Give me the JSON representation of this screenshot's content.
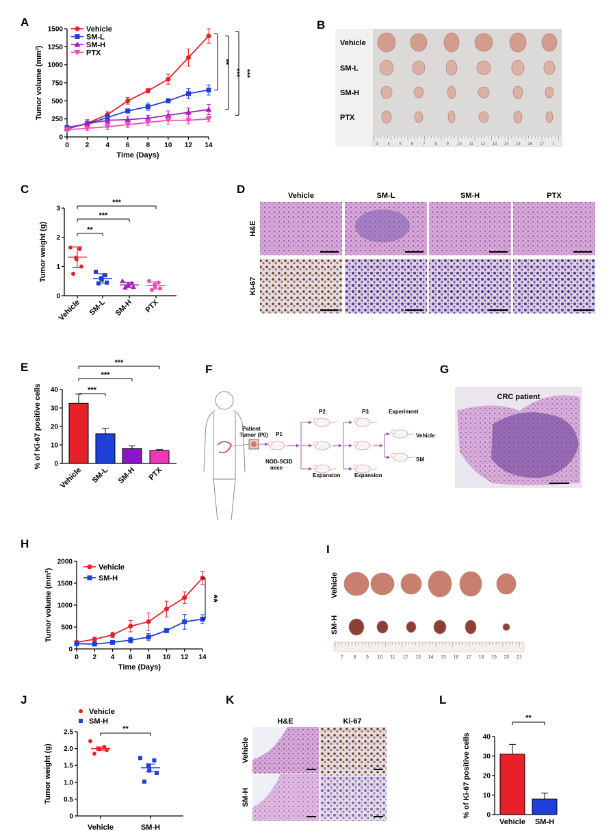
{
  "panel_letters": [
    "A",
    "B",
    "C",
    "D",
    "E",
    "F",
    "G",
    "H",
    "I",
    "J",
    "K",
    "L"
  ],
  "colors": {
    "vehicle": "#e8202a",
    "sml": "#1e3fd8",
    "smh": "#a51fb8",
    "ptx": "#e84fbe",
    "bar_smh": "#8a15c9",
    "bar_ptx": "#ef3ab8"
  },
  "panel_b": {
    "rows": [
      "Vehicle",
      "SM-L",
      "SM-H",
      "PTX"
    ],
    "ruler": [
      "3",
      "4",
      "5",
      "6",
      "7",
      "8",
      "9",
      "10",
      "11",
      "12",
      "13",
      "14",
      "15",
      "16",
      "17",
      "1"
    ]
  },
  "panel_d": {
    "columns": [
      "Vehicle",
      "SM-L",
      "SM-H",
      "PTX"
    ],
    "rows": [
      "H&E",
      "Ki-67"
    ]
  },
  "panel_f": {
    "patient": "Patient",
    "tumor": "Tumor (P0)",
    "p1": "P1",
    "mice_line1": "NOD-SCID",
    "mice_line2": "mice",
    "p2": "P2",
    "p3": "P3",
    "experiment": "Experiment",
    "expansion1": "Expansion",
    "expansion2": "Expansion",
    "vehicle": "Vehicle",
    "sm": "SM"
  },
  "panel_g": {
    "title": "CRC patient"
  },
  "panel_i": {
    "rows": [
      "Vehicle",
      "SM-H"
    ],
    "ruler": [
      "7",
      "8",
      "9",
      "10",
      "11",
      "12",
      "13",
      "14",
      "15",
      "16",
      "17",
      "18",
      "19",
      "20",
      "21"
    ]
  },
  "panel_k": {
    "columns": [
      "H&E",
      "Ki-67"
    ],
    "rows": [
      "Vehicle",
      "SM-H"
    ]
  },
  "chart_data": [
    {
      "id": "A",
      "type": "line",
      "xlabel": "Time (Days)",
      "ylabel": "Tumor volume (mm³)",
      "x": [
        0,
        2,
        4,
        6,
        8,
        10,
        12,
        14
      ],
      "xlim": [
        0,
        14
      ],
      "ylim": [
        0,
        1500
      ],
      "xticks": [
        "0",
        "2",
        "4",
        "6",
        "8",
        "10",
        "12",
        "14"
      ],
      "yticks": [
        "0",
        "250",
        "500",
        "750",
        "1000",
        "1250",
        "1500"
      ],
      "series": [
        {
          "name": "Vehicle",
          "color": "#e8202a",
          "marker": "circle",
          "values": [
            110,
            190,
            310,
            500,
            640,
            800,
            1100,
            1400
          ],
          "errors": [
            20,
            50,
            40,
            45,
            30,
            70,
            120,
            100
          ]
        },
        {
          "name": "SM-L",
          "color": "#1e3fd8",
          "marker": "square",
          "values": [
            130,
            180,
            270,
            360,
            420,
            500,
            600,
            650
          ],
          "errors": [
            20,
            40,
            40,
            30,
            50,
            30,
            70,
            70
          ]
        },
        {
          "name": "SM-H",
          "color": "#a51fb8",
          "marker": "triangle-up",
          "values": [
            120,
            180,
            230,
            240,
            260,
            300,
            340,
            380
          ],
          "errors": [
            20,
            40,
            40,
            50,
            40,
            60,
            60,
            70
          ]
        },
        {
          "name": "PTX",
          "color": "#e84fbe",
          "marker": "triangle-down",
          "values": [
            100,
            120,
            140,
            170,
            200,
            230,
            230,
            250
          ],
          "errors": [
            20,
            30,
            40,
            40,
            40,
            60,
            50,
            40
          ]
        }
      ],
      "significance": [
        "**",
        "***",
        "***"
      ]
    },
    {
      "id": "C",
      "type": "scatter",
      "ylabel": "Tumor weight (g)",
      "ylim": [
        0,
        3
      ],
      "yticks": [
        "0",
        "1",
        "2",
        "3"
      ],
      "categories": [
        "Vehicle",
        "SM-L",
        "SM-H",
        "PTX"
      ],
      "points": [
        [
          1.65,
          1.6,
          1.3,
          1.25,
          1.0,
          0.75
        ],
        [
          0.82,
          0.7,
          0.6,
          0.55,
          0.45,
          0.42
        ],
        [
          0.5,
          0.42,
          0.38,
          0.34,
          0.3,
          0.28
        ],
        [
          0.5,
          0.45,
          0.38,
          0.3,
          0.25,
          0.2
        ]
      ],
      "means": [
        1.32,
        0.59,
        0.37,
        0.35
      ],
      "sd": [
        0.35,
        0.16,
        0.09,
        0.12
      ],
      "colors": [
        "#e8202a",
        "#1e3fd8",
        "#a51fb8",
        "#e84fbe"
      ],
      "significance": [
        "**",
        "***",
        "***"
      ]
    },
    {
      "id": "E",
      "type": "bar",
      "ylabel": "% of Ki-67 positive cells",
      "ylim": [
        0,
        40
      ],
      "yticks": [
        "0",
        "10",
        "20",
        "30",
        "40"
      ],
      "categories": [
        "Vehicle",
        "SM-L",
        "SM-H",
        "PTX"
      ],
      "values": [
        32.5,
        16,
        8,
        7
      ],
      "errors": [
        5,
        3,
        1.5,
        0.5
      ],
      "colors": [
        "#e8202a",
        "#1e3fd8",
        "#8a15c9",
        "#ef3ab8"
      ],
      "significance": [
        "***",
        "***",
        "***"
      ]
    },
    {
      "id": "H",
      "type": "line",
      "xlabel": "Time (Days)",
      "ylabel": "Tumor volume (mm³)",
      "x": [
        0,
        2,
        4,
        6,
        8,
        10,
        12,
        14
      ],
      "xlim": [
        0,
        14
      ],
      "ylim": [
        0,
        2000
      ],
      "xticks": [
        "0",
        "2",
        "4",
        "6",
        "8",
        "10",
        "12",
        "14"
      ],
      "yticks": [
        "0",
        "500",
        "1000",
        "1500",
        "2000"
      ],
      "series": [
        {
          "name": "Vehicle",
          "color": "#e8202a",
          "marker": "circle",
          "values": [
            150,
            220,
            320,
            520,
            620,
            910,
            1170,
            1620
          ],
          "errors": [
            40,
            50,
            60,
            130,
            200,
            180,
            130,
            150
          ]
        },
        {
          "name": "SM-H",
          "color": "#1e3fd8",
          "marker": "square",
          "values": [
            120,
            110,
            150,
            200,
            270,
            420,
            620,
            680
          ],
          "errors": [
            30,
            30,
            40,
            60,
            80,
            50,
            170,
            100
          ]
        }
      ],
      "significance": [
        "**"
      ]
    },
    {
      "id": "J",
      "type": "scatter",
      "ylabel": "Tumor weight (g)",
      "ylim": [
        0,
        2.5
      ],
      "yticks": [
        "0",
        "0.5",
        "1.0",
        "1.5",
        "2.0",
        "2.5"
      ],
      "categories": [
        "Vehicle",
        "SM-H"
      ],
      "legend": [
        "Vehicle",
        "SM-H"
      ],
      "points": [
        [
          2.22,
          2.05,
          2.0,
          1.98,
          1.95,
          1.85
        ],
        [
          1.72,
          1.65,
          1.5,
          1.35,
          1.28,
          1.02
        ]
      ],
      "means": [
        2.0,
        1.43
      ],
      "sem": [
        0.05,
        0.11
      ],
      "colors": [
        "#e8202a",
        "#1e3fd8"
      ],
      "significance": [
        "**"
      ]
    },
    {
      "id": "L",
      "type": "bar",
      "ylabel": "% of Ki-67 positive cells",
      "ylim": [
        0,
        40
      ],
      "yticks": [
        "0",
        "10",
        "20",
        "30",
        "40"
      ],
      "categories": [
        "Vehicle",
        "SM-H"
      ],
      "values": [
        31,
        8
      ],
      "errors": [
        5,
        3
      ],
      "colors": [
        "#e8202a",
        "#1e3fd8"
      ],
      "significance": [
        "**"
      ]
    }
  ]
}
